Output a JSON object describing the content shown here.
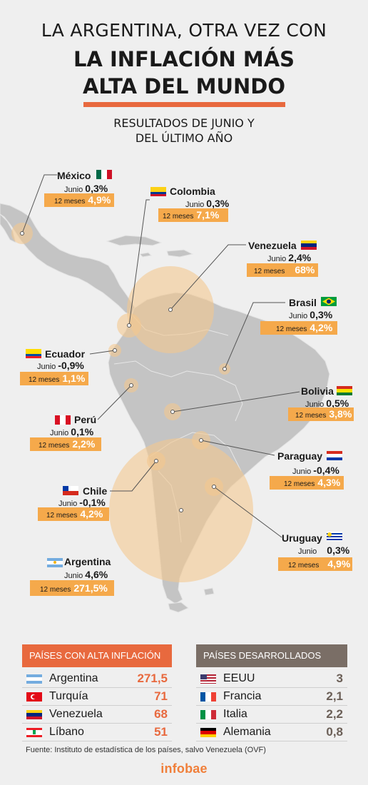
{
  "title": {
    "line1": "LA ARGENTINA, OTRA VEZ CON",
    "line2": "LA INFLACIÓN MÁS",
    "line3": "ALTA DEL MUNDO",
    "subtitle1": "RESULTADOS DE JUNIO Y",
    "subtitle2": "DEL ÚLTIMO AÑO"
  },
  "labels": {
    "month": "Junio",
    "year": "12 meses"
  },
  "countries": {
    "mexico": {
      "name": "México",
      "junio": "0,3%",
      "anual": "4,9%"
    },
    "colombia": {
      "name": "Colombia",
      "junio": "0,3%",
      "anual": "7,1%"
    },
    "venezuela": {
      "name": "Venezuela",
      "junio": "2,4%",
      "anual": "68%"
    },
    "brasil": {
      "name": "Brasil",
      "junio": "0,3%",
      "anual": "4,2%"
    },
    "ecuador": {
      "name": "Ecuador",
      "junio": "-0,9%",
      "anual": "1,1%"
    },
    "bolivia": {
      "name": "Bolivia",
      "junio": "0,5%",
      "anual": "3,8%"
    },
    "peru": {
      "name": "Perú",
      "junio": "0,1%",
      "anual": "2,2%"
    },
    "paraguay": {
      "name": "Paraguay",
      "junio": "-0,4%",
      "anual": "4,3%"
    },
    "chile": {
      "name": "Chile",
      "junio": "-0,1%",
      "anual": "4,2%"
    },
    "uruguay": {
      "name": "Uruguay",
      "junio": "0,3%",
      "anual": "4,9%"
    },
    "argentina": {
      "name": "Argentina",
      "junio": "4,6%",
      "anual": "271,5%"
    }
  },
  "tables": {
    "high": {
      "header": "PAÍSES CON ALTA INFLACIÓN",
      "rows": [
        {
          "country": "Argentina",
          "value": "271,5"
        },
        {
          "country": "Turquía",
          "value": "71"
        },
        {
          "country": "Venezuela",
          "value": "68"
        },
        {
          "country": "Líbano",
          "value": "51"
        }
      ]
    },
    "developed": {
      "header": "PAÍSES DESARROLLADOS",
      "rows": [
        {
          "country": "EEUU",
          "value": "3"
        },
        {
          "country": "Francia",
          "value": "2,1"
        },
        {
          "country": "Italia",
          "value": "2,2"
        },
        {
          "country": "Alemania",
          "value": "0,8"
        }
      ]
    }
  },
  "source": "Fuente: Instituto de estadística de los países, salvo Venezuela (OVF)",
  "logo": "infobae",
  "colors": {
    "accent": "#e8693e",
    "bar": "#f5a94b",
    "land": "#c4c4c4",
    "bubble": "#f3c88f",
    "developed": "#7a6e66",
    "value_high": "#e8693e",
    "value_dev": "#6b5f57"
  }
}
